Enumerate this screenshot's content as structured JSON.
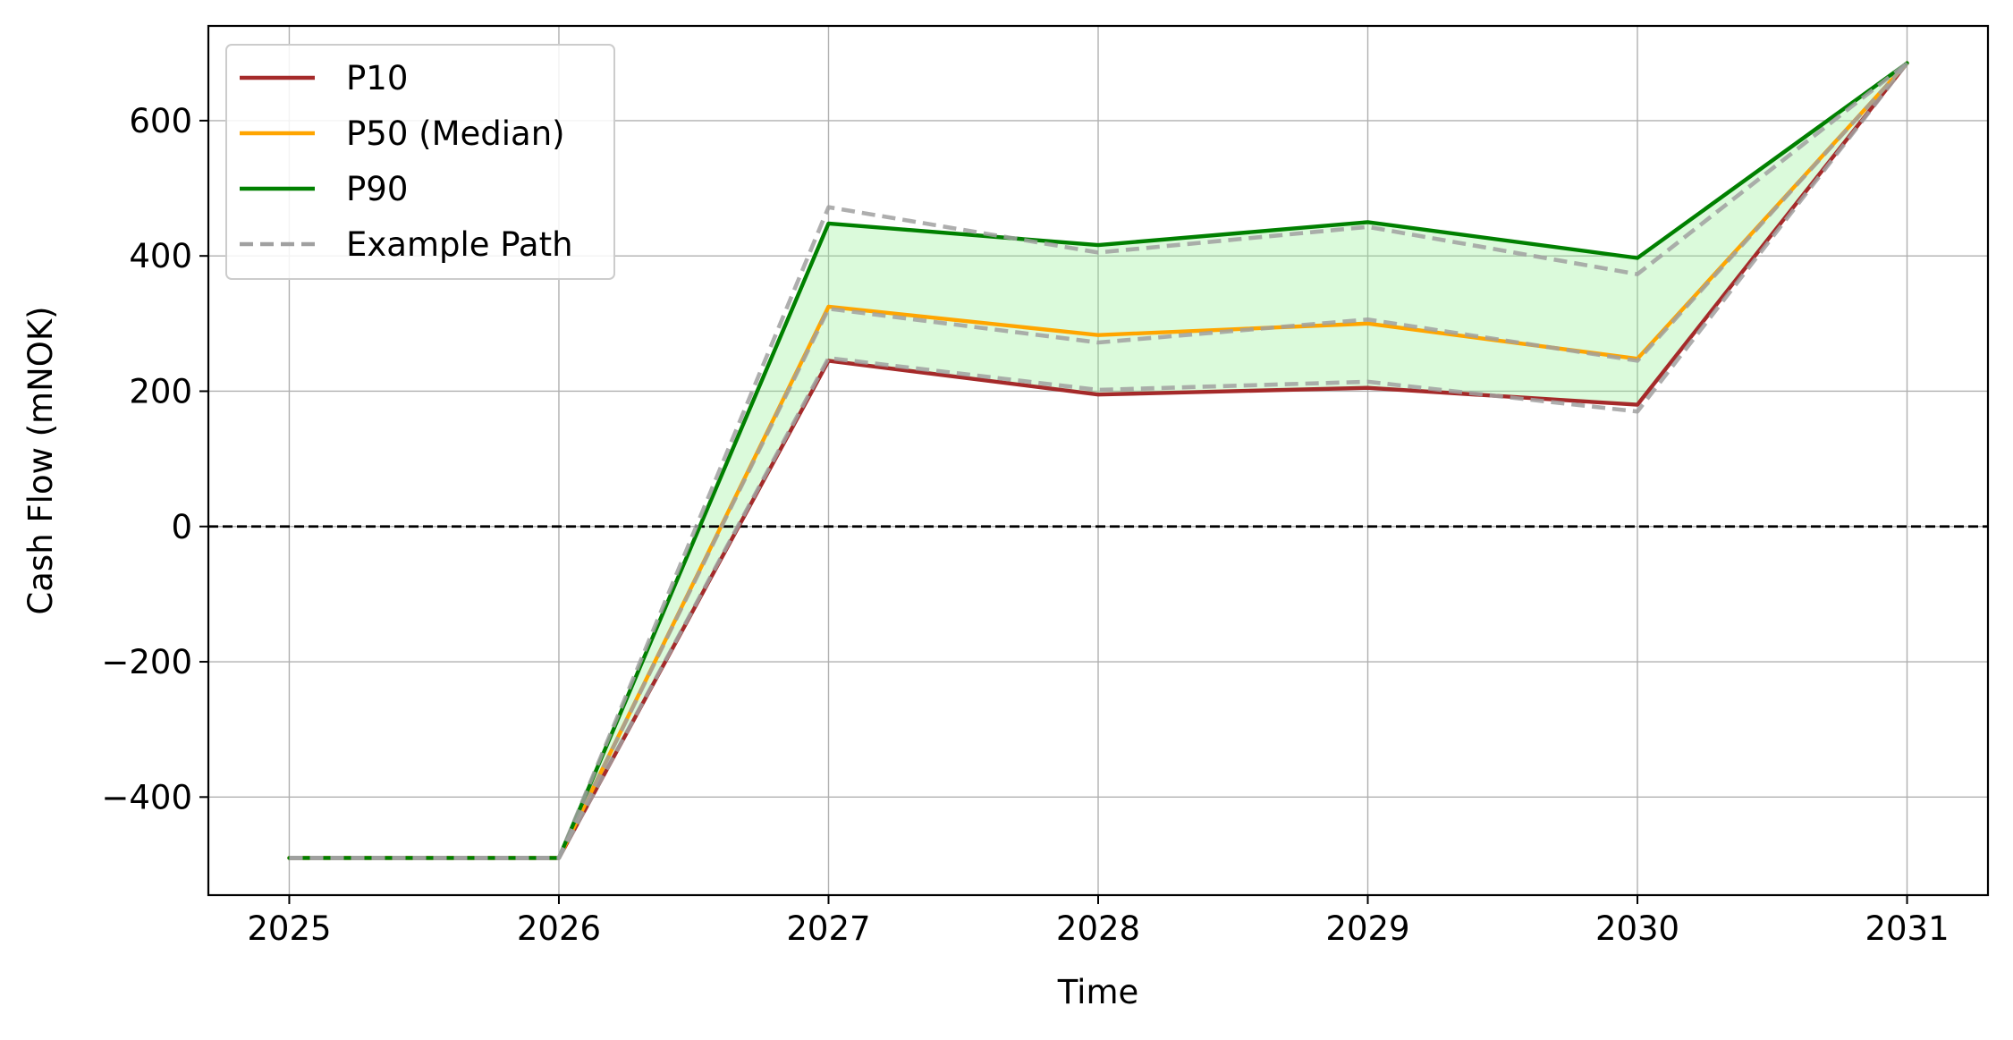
{
  "chart_data": {
    "type": "line",
    "title": "",
    "xlabel": "Time",
    "ylabel": "Cash Flow (mNOK)",
    "x": [
      2025,
      2026,
      2027,
      2028,
      2029,
      2030,
      2031
    ],
    "xlim": [
      2024.7,
      2031.3
    ],
    "ylim": [
      -545,
      740
    ],
    "xticks": [
      2025,
      2026,
      2027,
      2028,
      2029,
      2030,
      2031
    ],
    "yticks": [
      -400,
      -200,
      0,
      200,
      400,
      600
    ],
    "ytick_labels": [
      "−400",
      "−200",
      "0",
      "200",
      "400",
      "600"
    ],
    "grid": true,
    "legend_position": "top-left",
    "zero_line": {
      "y": 0,
      "style": "dashed",
      "color": "#000000"
    },
    "band": {
      "between": [
        "P10",
        "P90"
      ],
      "color": "#90ee90",
      "opacity": 0.32
    },
    "series": [
      {
        "name": "P10",
        "color": "#a52a2a",
        "style": "solid",
        "values": [
          -490,
          -490,
          245,
          195,
          205,
          180,
          685
        ]
      },
      {
        "name": "P50 (Median)",
        "color": "#ffa500",
        "style": "solid",
        "values": [
          -490,
          -490,
          325,
          283,
          300,
          248,
          685
        ]
      },
      {
        "name": "P90",
        "color": "#008000",
        "style": "solid",
        "values": [
          -490,
          -490,
          448,
          416,
          450,
          397,
          685
        ]
      }
    ],
    "example_paths": {
      "name": "Example Path",
      "color": "#a0a0a0",
      "style": "dashed",
      "paths": [
        [
          -490,
          -490,
          472,
          405,
          443,
          373,
          685
        ],
        [
          -490,
          -490,
          322,
          272,
          306,
          245,
          685
        ],
        [
          -490,
          -490,
          249,
          202,
          214,
          170,
          685
        ]
      ]
    }
  }
}
